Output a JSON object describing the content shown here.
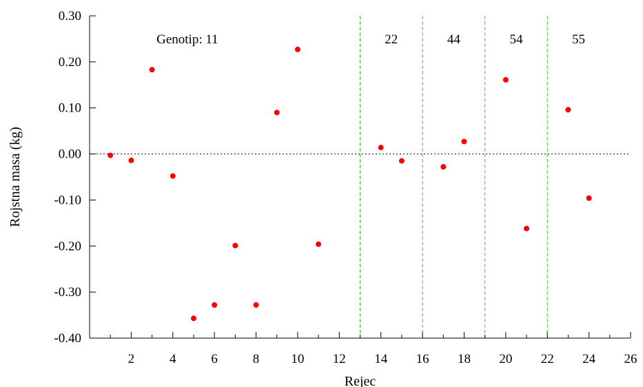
{
  "chart_data": {
    "type": "scatter",
    "xlabel": "Rejec",
    "ylabel": "Rojstna masa (kg)",
    "xlim": [
      0,
      26
    ],
    "ylim": [
      -0.4,
      0.3
    ],
    "x_ticks": [
      2,
      4,
      6,
      8,
      10,
      12,
      14,
      16,
      18,
      20,
      22,
      24,
      26
    ],
    "y_ticks": [
      0.3,
      0.2,
      0.1,
      0.0,
      -0.1,
      -0.2,
      -0.3,
      -0.4
    ],
    "y_tick_labels": [
      "0.30",
      "0.20",
      "0.10",
      "0.00",
      "-0.10",
      "-0.20",
      "-0.30",
      "-0.40"
    ],
    "reference_line_y": 0.0,
    "group_dividers_x": [
      13,
      16,
      19,
      22
    ],
    "group_labels": [
      {
        "text": "Genotip: 11",
        "x": 4.7
      },
      {
        "text": "22",
        "x": 14.5
      },
      {
        "text": "44",
        "x": 17.5
      },
      {
        "text": "54",
        "x": 20.5
      },
      {
        "text": "55",
        "x": 23.5
      }
    ],
    "series": [
      {
        "points": [
          {
            "x": 1,
            "y": -0.003
          },
          {
            "x": 2,
            "y": -0.014
          },
          {
            "x": 3,
            "y": 0.183
          },
          {
            "x": 4,
            "y": -0.048
          },
          {
            "x": 5,
            "y": -0.357
          },
          {
            "x": 6,
            "y": -0.328
          },
          {
            "x": 7,
            "y": -0.199
          },
          {
            "x": 8,
            "y": -0.328
          },
          {
            "x": 9,
            "y": 0.09
          },
          {
            "x": 10,
            "y": 0.227
          },
          {
            "x": 11,
            "y": -0.196
          },
          {
            "x": 14,
            "y": 0.014
          },
          {
            "x": 15,
            "y": -0.015
          },
          {
            "x": 17,
            "y": -0.028
          },
          {
            "x": 18,
            "y": 0.027
          },
          {
            "x": 20,
            "y": 0.161
          },
          {
            "x": 21,
            "y": -0.162
          },
          {
            "x": 23,
            "y": 0.096
          },
          {
            "x": 24,
            "y": -0.096
          }
        ]
      }
    ],
    "colors": {
      "points": "#ff0000",
      "dividers": "#33cc33",
      "axes": "#000000",
      "reference_line": "#000000"
    },
    "grid": false,
    "legend": "none"
  }
}
